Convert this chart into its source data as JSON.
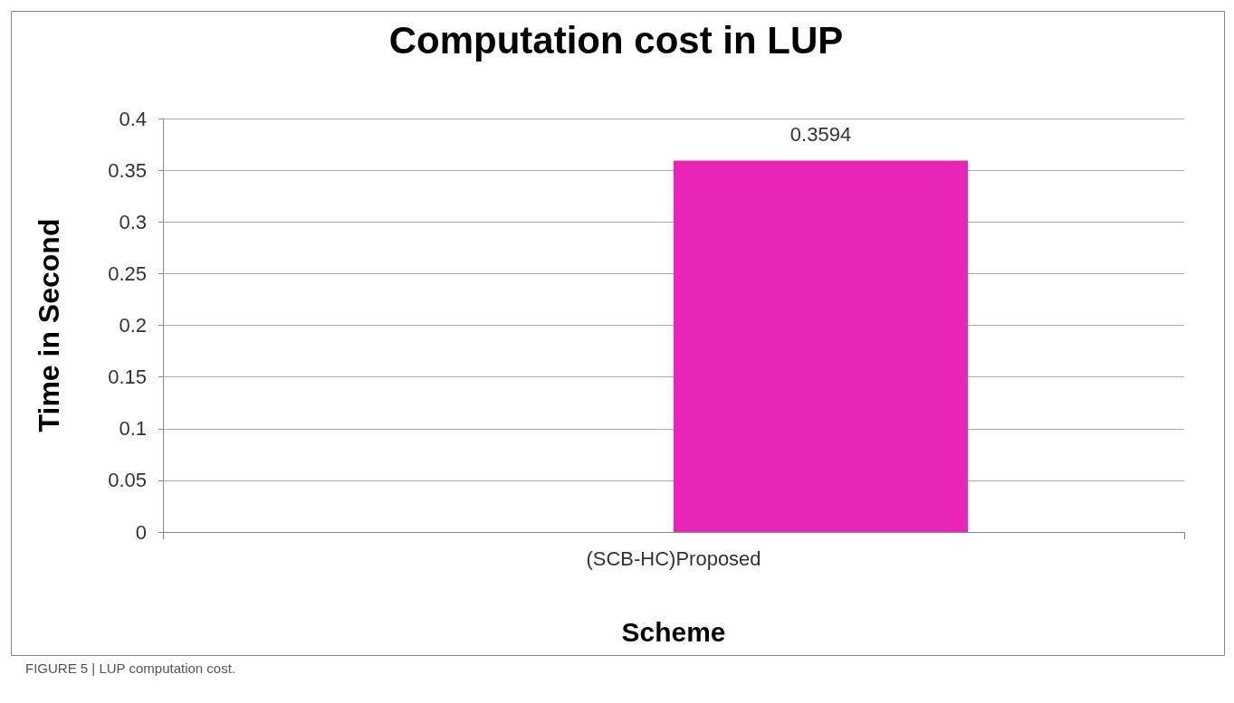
{
  "chart_data": {
    "type": "bar",
    "title": "Computation cost in LUP",
    "xlabel": "Scheme",
    "ylabel": "Time in Second",
    "categories": [
      "(SCB-HC)Proposed"
    ],
    "series": [
      {
        "values": [
          null
        ]
      },
      {
        "color": "#e925b7",
        "values": [
          0.3594
        ]
      }
    ],
    "ylim": [
      0,
      0.4
    ],
    "yticks": [
      0,
      0.05,
      0.1,
      0.15,
      0.2,
      0.25,
      0.3,
      0.35,
      0.4
    ],
    "grid": "y",
    "data_labels": true,
    "annotations": [
      "FIGURE 5 | LUP computation cost."
    ]
  }
}
